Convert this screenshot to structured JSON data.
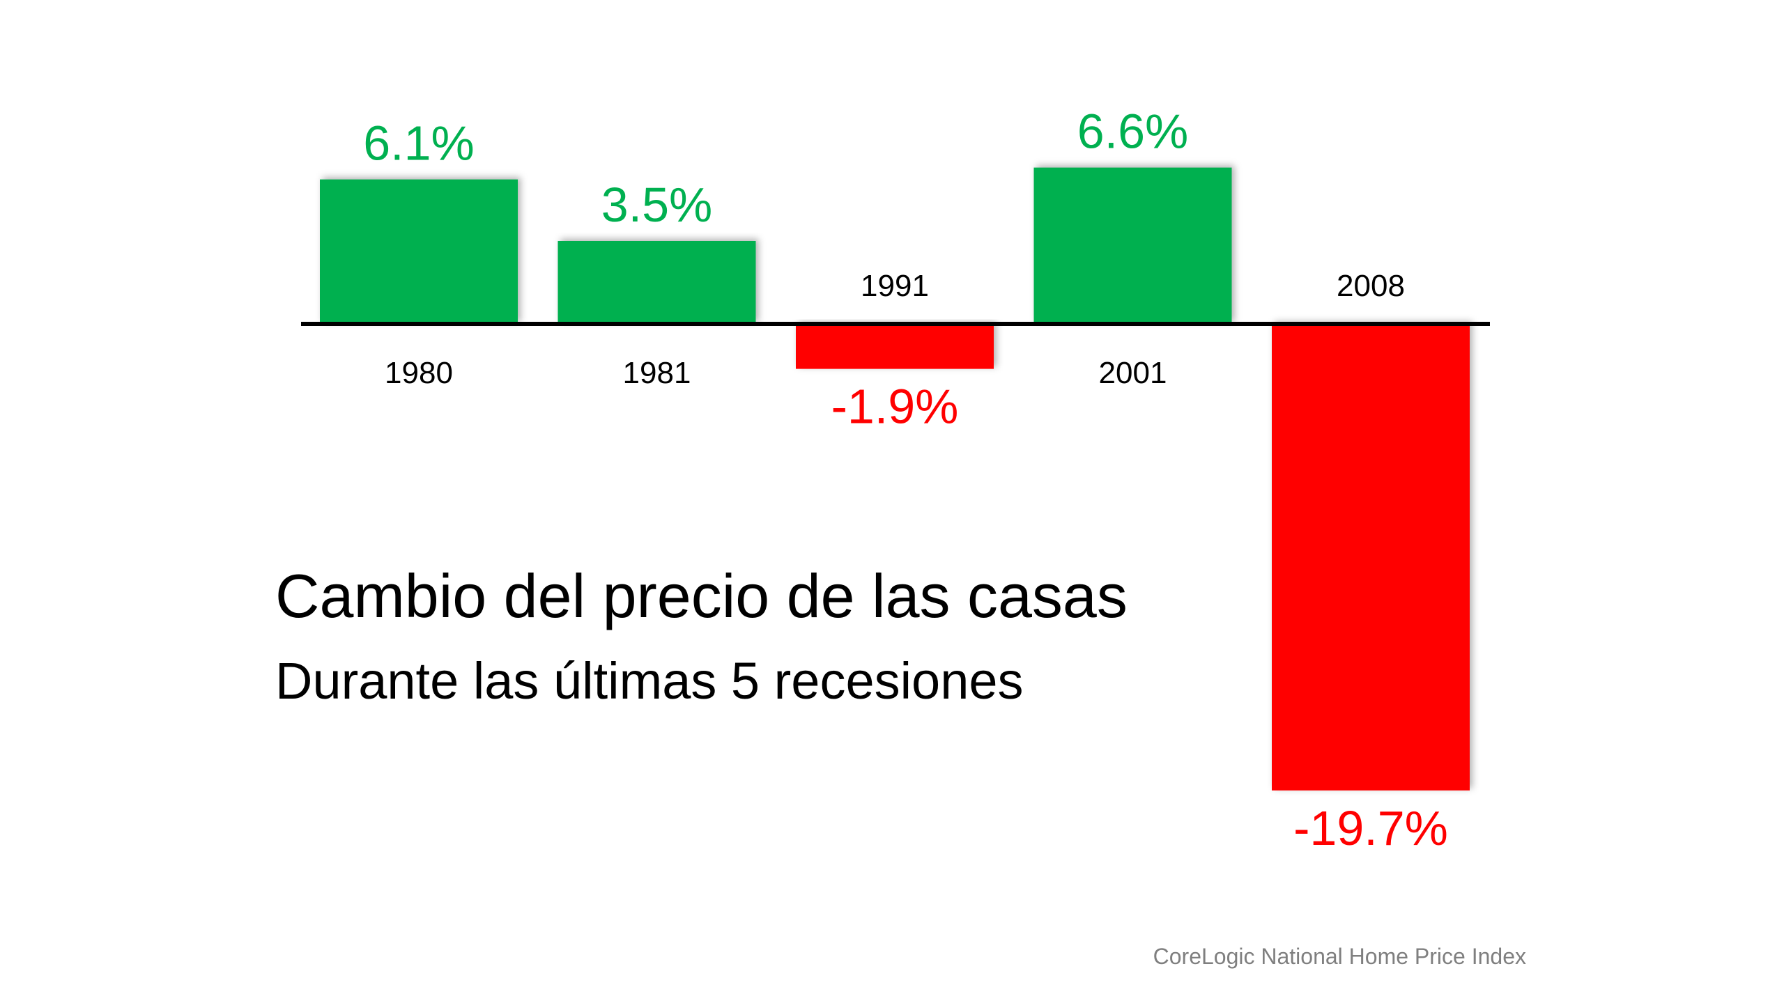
{
  "chart_data": {
    "type": "bar",
    "title": "Cambio del precio de las casas",
    "subtitle": "Durante las últimas 5 recesiones",
    "source": "CoreLogic National Home Price Index",
    "categories": [
      "1980",
      "1981",
      "1991",
      "2001",
      "2008"
    ],
    "values": [
      6.1,
      3.5,
      -1.9,
      6.6,
      -19.7
    ],
    "data_labels": [
      "6.1%",
      "3.5%",
      "-1.9%",
      "6.6%",
      "-19.7%"
    ],
    "xlabel": "",
    "ylabel": "",
    "ylim": [
      -19.7,
      6.6
    ],
    "grid": false,
    "legend": "none",
    "colors": {
      "positive": "#00B050",
      "negative": "#FF0000",
      "axis": "#000000",
      "source_text": "#7F7F7F"
    }
  }
}
